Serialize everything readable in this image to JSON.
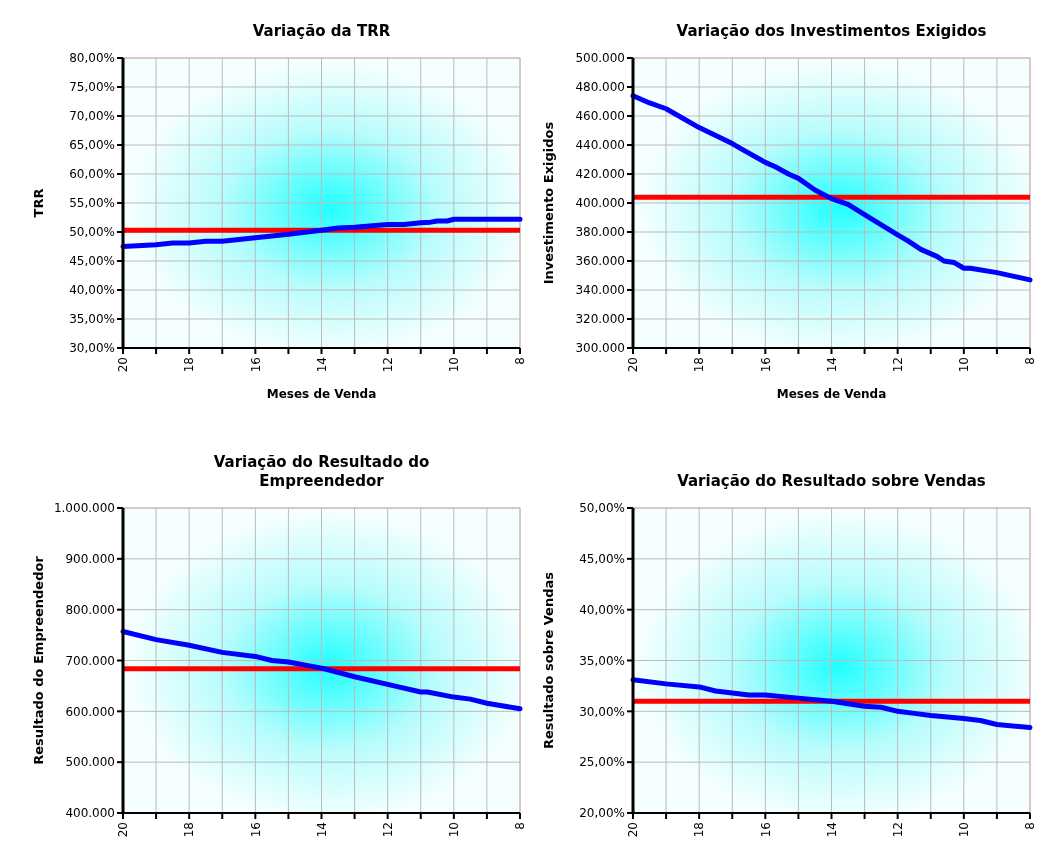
{
  "chart_data": [
    {
      "type": "line",
      "title": "Variação da TRR",
      "xlabel": "Meses de Venda",
      "ylabel": "TRR",
      "xlim": [
        20,
        8
      ],
      "xticks": [
        20,
        {
          "value": 19,
          "label": null
        },
        18,
        {
          "value": 17,
          "label": null
        },
        16,
        {
          "value": 15,
          "label": null
        },
        14,
        {
          "value": 13,
          "label": null
        },
        12,
        {
          "value": 11,
          "label": null
        },
        10,
        {
          "value": 9,
          "label": null
        },
        8
      ],
      "ylim": [
        30,
        80
      ],
      "yticks": [
        {
          "value": 30,
          "label": "30,00%"
        },
        {
          "value": 35,
          "label": "35,00%"
        },
        {
          "value": 40,
          "label": "40,00%"
        },
        {
          "value": 45,
          "label": "45,00%"
        },
        {
          "value": 50,
          "label": "50,00%"
        },
        {
          "value": 55,
          "label": "55,00%"
        },
        {
          "value": 60,
          "label": "60,00%"
        },
        {
          "value": 65,
          "label": "65,00%"
        },
        {
          "value": 70,
          "label": "70,00%"
        },
        {
          "value": 75,
          "label": "75,00%"
        },
        {
          "value": 80,
          "label": "80,00%"
        }
      ],
      "grid": true,
      "series": [
        {
          "color": "#0000ff",
          "x": [
            20,
            19,
            18.5,
            18,
            17.5,
            17,
            16,
            15,
            14,
            13.5,
            13,
            12,
            11.5,
            11,
            10.7,
            10.5,
            10.2,
            10,
            9,
            8
          ],
          "values": [
            47.5,
            47.8,
            48.1,
            48.1,
            48.4,
            48.4,
            49.0,
            49.6,
            50.3,
            50.7,
            50.8,
            51.3,
            51.3,
            51.6,
            51.7,
            51.9,
            51.9,
            52.2,
            52.2,
            52.2
          ]
        }
      ],
      "ref_lines": [
        {
          "axis": "y",
          "value": 50.3,
          "color": "#ff0000"
        }
      ]
    },
    {
      "type": "line",
      "title": "Variação dos Investimentos Exigidos",
      "xlabel": "Meses de Venda",
      "ylabel": "Investimento Exigidos",
      "xlim": [
        20,
        8
      ],
      "xticks": [
        20,
        {
          "value": 19,
          "label": null
        },
        18,
        {
          "value": 17,
          "label": null
        },
        16,
        {
          "value": 15,
          "label": null
        },
        14,
        {
          "value": 13,
          "label": null
        },
        12,
        {
          "value": 11,
          "label": null
        },
        10,
        {
          "value": 9,
          "label": null
        },
        8
      ],
      "ylim": [
        300000,
        500000
      ],
      "yticks": [
        {
          "value": 300000,
          "label": "300.000"
        },
        {
          "value": 320000,
          "label": "320.000"
        },
        {
          "value": 340000,
          "label": "340.000"
        },
        {
          "value": 360000,
          "label": "360.000"
        },
        {
          "value": 380000,
          "label": "380.000"
        },
        {
          "value": 400000,
          "label": "400.000"
        },
        {
          "value": 420000,
          "label": "420.000"
        },
        {
          "value": 440000,
          "label": "440.000"
        },
        {
          "value": 460000,
          "label": "460.000"
        },
        {
          "value": 480000,
          "label": "480.000"
        },
        {
          "value": 500000,
          "label": "500.000"
        }
      ],
      "grid": true,
      "series": [
        {
          "color": "#0000ff",
          "x": [
            20,
            19.5,
            19,
            18,
            17,
            16.7,
            16,
            15.7,
            15.3,
            15,
            14.5,
            14,
            13.5,
            13,
            12,
            11.7,
            11.3,
            10.8,
            10.6,
            10.3,
            10,
            9.8,
            9,
            8
          ],
          "values": [
            474000,
            469000,
            465000,
            452000,
            441000,
            437000,
            428000,
            425000,
            420000,
            417000,
            409000,
            403000,
            399000,
            392000,
            378000,
            374000,
            368000,
            363000,
            360000,
            359000,
            355000,
            355000,
            352000,
            347000
          ]
        }
      ],
      "ref_lines": [
        {
          "axis": "y",
          "value": 404000,
          "color": "#ff0000"
        }
      ]
    },
    {
      "type": "line",
      "title": "Variação do Resultado do Empreendedor",
      "ylabel": "Resultado do Empreendedor",
      "xlim": [
        20,
        8
      ],
      "xticks": [
        20,
        {
          "value": 19,
          "label": null
        },
        18,
        {
          "value": 17,
          "label": null
        },
        16,
        {
          "value": 15,
          "label": null
        },
        14,
        {
          "value": 13,
          "label": null
        },
        12,
        {
          "value": 11,
          "label": null
        },
        10,
        {
          "value": 9,
          "label": null
        },
        8
      ],
      "ylim": [
        400000,
        1000000
      ],
      "yticks": [
        {
          "value": 400000,
          "label": "400.000"
        },
        {
          "value": 500000,
          "label": "500.000"
        },
        {
          "value": 600000,
          "label": "600.000"
        },
        {
          "value": 700000,
          "label": "700.000"
        },
        {
          "value": 800000,
          "label": "800.000"
        },
        {
          "value": 900000,
          "label": "900.000"
        },
        {
          "value": 1000000,
          "label": "1.000.000"
        }
      ],
      "grid": true,
      "series": [
        {
          "color": "#0000ff",
          "x": [
            20,
            19,
            18,
            17,
            16,
            15.5,
            15,
            14,
            13,
            12,
            11,
            10.8,
            10,
            9.5,
            9,
            8
          ],
          "values": [
            757000,
            741000,
            730000,
            716000,
            708000,
            700000,
            697000,
            685000,
            668000,
            653000,
            638000,
            638000,
            628000,
            624000,
            616000,
            605000
          ]
        }
      ],
      "ref_lines": [
        {
          "axis": "y",
          "value": 684000,
          "color": "#ff0000"
        }
      ]
    },
    {
      "type": "line",
      "title": "Variação do Resultado sobre Vendas",
      "ylabel": "Resultado sobre Vendas",
      "xlim": [
        20,
        8
      ],
      "xticks": [
        20,
        {
          "value": 19,
          "label": null
        },
        18,
        {
          "value": 17,
          "label": null
        },
        16,
        {
          "value": 15,
          "label": null
        },
        14,
        {
          "value": 13,
          "label": null
        },
        12,
        {
          "value": 11,
          "label": null
        },
        10,
        {
          "value": 9,
          "label": null
        },
        8
      ],
      "ylim": [
        20,
        50
      ],
      "yticks": [
        {
          "value": 20,
          "label": "20,00%"
        },
        {
          "value": 25,
          "label": "25,00%"
        },
        {
          "value": 30,
          "label": "30,00%"
        },
        {
          "value": 35,
          "label": "35,00%"
        },
        {
          "value": 40,
          "label": "40,00%"
        },
        {
          "value": 45,
          "label": "45,00%"
        },
        {
          "value": 50,
          "label": "50,00%"
        }
      ],
      "grid": true,
      "series": [
        {
          "color": "#0000ff",
          "x": [
            20,
            19,
            18,
            17.5,
            17,
            16.5,
            16,
            15,
            14,
            13,
            12.5,
            12,
            11.5,
            11,
            10,
            9.5,
            9,
            8
          ],
          "values": [
            33.1,
            32.7,
            32.4,
            32.0,
            31.8,
            31.6,
            31.6,
            31.3,
            31.0,
            30.5,
            30.4,
            30.0,
            29.8,
            29.6,
            29.3,
            29.1,
            28.7,
            28.4
          ]
        }
      ],
      "ref_lines": [
        {
          "axis": "y",
          "value": 31.0,
          "color": "#ff0000"
        }
      ]
    }
  ]
}
